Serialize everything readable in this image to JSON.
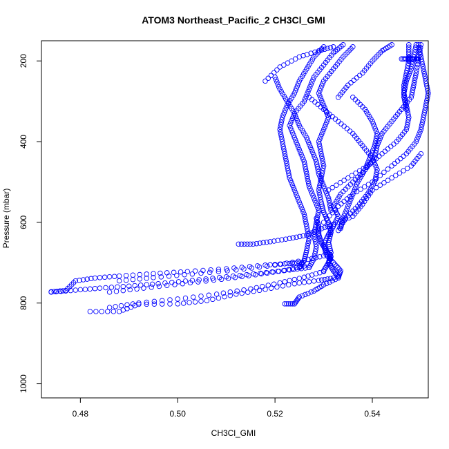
{
  "chart_data": {
    "type": "scatter",
    "title": "ATOM3 Northeast_Pacific_2 CH3Cl_GMI",
    "xlabel": "CH3Cl_GMI",
    "ylabel": "Pressure (mbar)",
    "xlim": [
      0.472,
      0.5515
    ],
    "ylim": [
      1035,
      150
    ],
    "y_reversed": true,
    "x_ticks": [
      0.48,
      0.5,
      0.52,
      0.54
    ],
    "x_tick_labels": [
      "0.48",
      "0.50",
      "0.52",
      "0.54"
    ],
    "y_ticks": [
      200,
      400,
      600,
      800,
      1000
    ],
    "y_tick_labels": [
      "200",
      "400",
      "600",
      "800",
      "1000"
    ],
    "marker": "open-circle",
    "marker_color": "#0000ff",
    "grid": false,
    "series": [
      {
        "values": [
          [
            0.474,
            772
          ],
          [
            0.477,
            769
          ],
          [
            0.479,
            745
          ],
          [
            0.483,
            738
          ],
          [
            0.488,
            733
          ],
          [
            0.495,
            727
          ],
          [
            0.502,
            722
          ],
          [
            0.51,
            715
          ],
          [
            0.518,
            706
          ],
          [
            0.523,
            702
          ],
          [
            0.5255,
            700
          ]
        ]
      },
      {
        "values": [
          [
            0.474,
            773
          ],
          [
            0.479,
            768
          ],
          [
            0.484,
            763
          ],
          [
            0.49,
            758
          ],
          [
            0.496,
            752
          ],
          [
            0.503,
            744
          ],
          [
            0.51,
            735
          ],
          [
            0.517,
            726
          ],
          [
            0.523,
            718
          ],
          [
            0.527,
            712
          ]
        ]
      },
      {
        "values": [
          [
            0.482,
            821
          ],
          [
            0.488,
            821
          ],
          [
            0.492,
            803
          ],
          [
            0.5,
            802
          ],
          [
            0.506,
            794
          ],
          [
            0.512,
            778
          ],
          [
            0.518,
            766
          ],
          [
            0.524,
            752
          ],
          [
            0.529,
            744
          ],
          [
            0.532,
            738
          ]
        ]
      },
      {
        "values": [
          [
            0.486,
            811
          ],
          [
            0.492,
            800
          ],
          [
            0.5,
            790
          ],
          [
            0.508,
            778
          ],
          [
            0.515,
            765
          ],
          [
            0.521,
            750
          ],
          [
            0.526,
            736
          ],
          [
            0.53,
            722
          ]
        ]
      },
      {
        "values": [
          [
            0.488,
            745
          ],
          [
            0.495,
            737
          ],
          [
            0.503,
            728
          ],
          [
            0.512,
            718
          ],
          [
            0.52,
            706
          ],
          [
            0.526,
            694
          ],
          [
            0.53,
            683
          ]
        ]
      },
      {
        "values": [
          [
            0.486,
            773
          ],
          [
            0.493,
            763
          ],
          [
            0.501,
            752
          ],
          [
            0.509,
            741
          ],
          [
            0.516,
            730
          ],
          [
            0.522,
            719
          ],
          [
            0.526,
            708
          ]
        ]
      },
      {
        "values": [
          [
            0.5125,
            654
          ],
          [
            0.5155,
            654
          ],
          [
            0.519,
            648
          ],
          [
            0.523,
            640
          ],
          [
            0.5265,
            632
          ],
          [
            0.529,
            618
          ],
          [
            0.532,
            605
          ],
          [
            0.536,
            585
          ],
          [
            0.538,
            555
          ],
          [
            0.54,
            520
          ],
          [
            0.544,
            490
          ],
          [
            0.548,
            460
          ],
          [
            0.55,
            430
          ]
        ]
      },
      {
        "values": [
          [
            0.522,
            802
          ],
          [
            0.524,
            802
          ],
          [
            0.525,
            785
          ],
          [
            0.528,
            770
          ],
          [
            0.53,
            755
          ],
          [
            0.533,
            738
          ],
          [
            0.5335,
            720
          ],
          [
            0.532,
            700
          ],
          [
            0.5305,
            680
          ],
          [
            0.53,
            655
          ],
          [
            0.531,
            630
          ],
          [
            0.532,
            610
          ],
          [
            0.533,
            585
          ],
          [
            0.532,
            560
          ],
          [
            0.5335,
            530
          ],
          [
            0.536,
            500
          ],
          [
            0.5385,
            470
          ],
          [
            0.5405,
            440
          ],
          [
            0.541,
            410
          ],
          [
            0.542,
            380
          ],
          [
            0.544,
            350
          ],
          [
            0.546,
            320
          ],
          [
            0.548,
            290
          ],
          [
            0.5485,
            260
          ],
          [
            0.549,
            230
          ],
          [
            0.5495,
            195
          ],
          [
            0.55,
            160
          ]
        ]
      },
      {
        "values": [
          [
            0.525,
            712
          ],
          [
            0.526,
            695
          ],
          [
            0.5265,
            670
          ],
          [
            0.527,
            640
          ],
          [
            0.5265,
            610
          ],
          [
            0.526,
            580
          ],
          [
            0.525,
            550
          ],
          [
            0.524,
            520
          ],
          [
            0.523,
            490
          ],
          [
            0.5225,
            460
          ],
          [
            0.522,
            430
          ],
          [
            0.5215,
            400
          ],
          [
            0.521,
            370
          ],
          [
            0.5215,
            340
          ],
          [
            0.5225,
            310
          ],
          [
            0.524,
            280
          ],
          [
            0.525,
            250
          ],
          [
            0.5265,
            220
          ],
          [
            0.528,
            190
          ],
          [
            0.53,
            165
          ]
        ]
      },
      {
        "values": [
          [
            0.527,
            712
          ],
          [
            0.528,
            690
          ],
          [
            0.5285,
            660
          ],
          [
            0.528,
            630
          ],
          [
            0.5285,
            600
          ],
          [
            0.529,
            570
          ],
          [
            0.528,
            540
          ],
          [
            0.527,
            510
          ],
          [
            0.5265,
            480
          ],
          [
            0.526,
            450
          ],
          [
            0.525,
            420
          ],
          [
            0.524,
            390
          ],
          [
            0.523,
            360
          ],
          [
            0.524,
            330
          ],
          [
            0.526,
            300
          ],
          [
            0.527,
            270
          ],
          [
            0.528,
            240
          ],
          [
            0.53,
            210
          ],
          [
            0.532,
            180
          ],
          [
            0.534,
            160
          ]
        ]
      },
      {
        "values": [
          [
            0.53,
            720
          ],
          [
            0.531,
            700
          ],
          [
            0.5315,
            675
          ],
          [
            0.531,
            650
          ],
          [
            0.5315,
            625
          ],
          [
            0.531,
            600
          ],
          [
            0.53,
            575
          ],
          [
            0.5295,
            550
          ],
          [
            0.529,
            520
          ],
          [
            0.5295,
            490
          ],
          [
            0.53,
            460
          ],
          [
            0.5295,
            430
          ],
          [
            0.529,
            400
          ],
          [
            0.53,
            370
          ],
          [
            0.531,
            340
          ],
          [
            0.53,
            310
          ],
          [
            0.529,
            280
          ],
          [
            0.53,
            250
          ],
          [
            0.532,
            220
          ],
          [
            0.534,
            190
          ],
          [
            0.536,
            165
          ]
        ]
      },
      {
        "values": [
          [
            0.52,
            240
          ],
          [
            0.521,
            270
          ],
          [
            0.5225,
            300
          ],
          [
            0.524,
            330
          ],
          [
            0.525,
            360
          ],
          [
            0.5265,
            390
          ],
          [
            0.5275,
            420
          ],
          [
            0.5285,
            450
          ],
          [
            0.529,
            480
          ],
          [
            0.53,
            510
          ],
          [
            0.531,
            540
          ],
          [
            0.5315,
            570
          ]
        ]
      },
      {
        "values": [
          [
            0.518,
            250
          ],
          [
            0.521,
            215
          ],
          [
            0.525,
            190
          ],
          [
            0.529,
            175
          ],
          [
            0.532,
            165
          ]
        ]
      },
      {
        "values": [
          [
            0.533,
            290
          ],
          [
            0.535,
            260
          ],
          [
            0.538,
            230
          ],
          [
            0.54,
            200
          ],
          [
            0.542,
            175
          ],
          [
            0.544,
            160
          ]
        ]
      },
      {
        "values": [
          [
            0.527,
            290
          ],
          [
            0.53,
            320
          ],
          [
            0.533,
            350
          ],
          [
            0.536,
            380
          ],
          [
            0.538,
            410
          ],
          [
            0.54,
            440
          ],
          [
            0.541,
            470
          ],
          [
            0.5405,
            500
          ],
          [
            0.539,
            530
          ],
          [
            0.537,
            560
          ],
          [
            0.5345,
            590
          ],
          [
            0.533,
            620
          ]
        ]
      },
      {
        "values": [
          [
            0.536,
            290
          ],
          [
            0.5385,
            320
          ],
          [
            0.54,
            350
          ],
          [
            0.541,
            380
          ],
          [
            0.5405,
            410
          ],
          [
            0.5395,
            440
          ],
          [
            0.5385,
            470
          ],
          [
            0.537,
            500
          ],
          [
            0.536,
            530
          ],
          [
            0.535,
            560
          ],
          [
            0.534,
            590
          ],
          [
            0.5335,
            615
          ]
        ]
      },
      {
        "values": [
          [
            0.53,
            600
          ],
          [
            0.533,
            560
          ],
          [
            0.536,
            530
          ],
          [
            0.54,
            500
          ],
          [
            0.544,
            460
          ],
          [
            0.547,
            430
          ],
          [
            0.549,
            400
          ],
          [
            0.55,
            370
          ],
          [
            0.5505,
            340
          ],
          [
            0.551,
            310
          ],
          [
            0.5515,
            280
          ],
          [
            0.551,
            250
          ],
          [
            0.5505,
            220
          ],
          [
            0.55,
            190
          ],
          [
            0.5495,
            160
          ]
        ]
      },
      {
        "values": [
          [
            0.531,
            520
          ],
          [
            0.535,
            490
          ],
          [
            0.539,
            460
          ],
          [
            0.542,
            430
          ],
          [
            0.545,
            400
          ],
          [
            0.547,
            370
          ],
          [
            0.5475,
            340
          ],
          [
            0.547,
            310
          ],
          [
            0.5465,
            280
          ],
          [
            0.547,
            250
          ],
          [
            0.548,
            220
          ],
          [
            0.5485,
            190
          ],
          [
            0.549,
            160
          ]
        ]
      },
      {
        "values": [
          [
            0.546,
            195
          ],
          [
            0.5475,
            195
          ],
          [
            0.549,
            195
          ],
          [
            0.5495,
            195
          ]
        ]
      },
      {
        "values": [
          [
            0.5475,
            160
          ],
          [
            0.5475,
            190
          ],
          [
            0.5475,
            200
          ],
          [
            0.547,
            230
          ],
          [
            0.5465,
            260
          ],
          [
            0.5465,
            290
          ],
          [
            0.547,
            320
          ]
        ]
      },
      {
        "values": [
          [
            0.533,
            735
          ],
          [
            0.532,
            720
          ],
          [
            0.531,
            700
          ],
          [
            0.5315,
            685
          ],
          [
            0.5305,
            670
          ],
          [
            0.5295,
            650
          ],
          [
            0.529,
            630
          ],
          [
            0.529,
            610
          ],
          [
            0.5285,
            590
          ]
        ]
      }
    ]
  }
}
